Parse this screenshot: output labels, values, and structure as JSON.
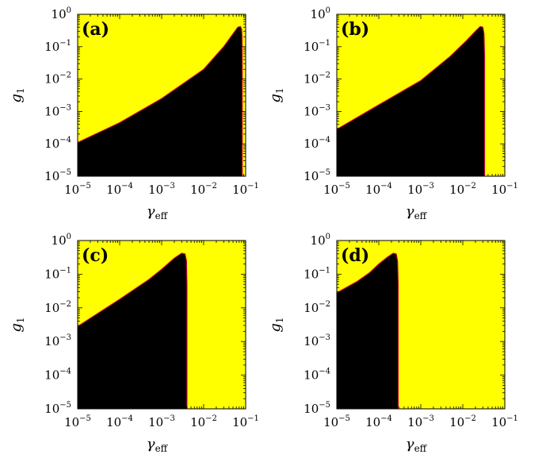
{
  "chart_data": [
    {
      "type": "area",
      "panel_label": "(a)",
      "xlabel": "γ",
      "xlabel_sub": "eff",
      "ylabel": "g",
      "ylabel_sub": "1",
      "x_scale": "log",
      "y_scale": "log",
      "xlim": [
        1e-05,
        0.1
      ],
      "ylim": [
        1e-05,
        1
      ],
      "x_ticks": [
        "10",
        "10",
        "10",
        "10",
        "10"
      ],
      "x_tick_exp": [
        "−5",
        "−4",
        "−3",
        "−2",
        "−1"
      ],
      "y_ticks": [
        "10",
        "10",
        "10",
        "10",
        "10",
        "10"
      ],
      "y_tick_exp": [
        "−5",
        "−4",
        "−3",
        "−2",
        "−1",
        "0"
      ],
      "background_color": "#ffff00",
      "region_color": "#000000",
      "boundary_color": "#c0003c",
      "region_boundary": {
        "x": [
          1e-05,
          0.0001,
          0.001,
          0.01,
          0.03,
          0.05,
          0.065,
          0.075,
          0.08,
          0.082,
          0.083,
          0.083
        ],
        "y": [
          0.00011,
          0.00045,
          0.0025,
          0.02,
          0.1,
          0.25,
          0.4,
          0.42,
          0.35,
          0.2,
          0.05,
          1e-05
        ]
      }
    },
    {
      "type": "area",
      "panel_label": "(b)",
      "xlabel": "γ",
      "xlabel_sub": "eff",
      "ylabel": "g",
      "ylabel_sub": "1",
      "x_scale": "log",
      "y_scale": "log",
      "xlim": [
        1e-05,
        0.1
      ],
      "ylim": [
        1e-05,
        1
      ],
      "x_ticks": [
        "10",
        "10",
        "10",
        "10",
        "10"
      ],
      "x_tick_exp": [
        "−5",
        "−4",
        "−3",
        "−2",
        "−1"
      ],
      "y_ticks": [
        "10",
        "10",
        "10",
        "10",
        "10",
        "10"
      ],
      "y_tick_exp": [
        "−5",
        "−4",
        "−3",
        "−2",
        "−1",
        "0"
      ],
      "background_color": "#ffff00",
      "region_color": "#000000",
      "boundary_color": "#c0003c",
      "region_boundary": {
        "x": [
          1e-05,
          0.0001,
          0.001,
          0.005,
          0.012,
          0.02,
          0.026,
          0.03,
          0.032,
          0.033,
          0.033
        ],
        "y": [
          0.00028,
          0.0016,
          0.009,
          0.05,
          0.15,
          0.3,
          0.42,
          0.4,
          0.25,
          0.05,
          1e-05
        ]
      }
    },
    {
      "type": "area",
      "panel_label": "(c)",
      "xlabel": "γ",
      "xlabel_sub": "eff",
      "ylabel": "g",
      "ylabel_sub": "1",
      "x_scale": "log",
      "y_scale": "log",
      "xlim": [
        1e-05,
        0.1
      ],
      "ylim": [
        1e-05,
        1
      ],
      "x_ticks": [
        "10",
        "10",
        "10",
        "10",
        "10"
      ],
      "x_tick_exp": [
        "−5",
        "−4",
        "−3",
        "−2",
        "−1"
      ],
      "y_ticks": [
        "10",
        "10",
        "10",
        "10",
        "10",
        "10"
      ],
      "y_tick_exp": [
        "−5",
        "−4",
        "−3",
        "−2",
        "−1",
        "0"
      ],
      "background_color": "#ffff00",
      "region_color": "#000000",
      "boundary_color": "#c0003c",
      "region_boundary": {
        "x": [
          1e-05,
          0.0001,
          0.0005,
          0.001,
          0.002,
          0.003,
          0.0036,
          0.0039,
          0.004,
          0.004
        ],
        "y": [
          0.0028,
          0.018,
          0.07,
          0.14,
          0.3,
          0.42,
          0.4,
          0.25,
          0.05,
          1e-05
        ]
      }
    },
    {
      "type": "area",
      "panel_label": "(d)",
      "xlabel": "γ",
      "xlabel_sub": "eff",
      "ylabel": "g",
      "ylabel_sub": "1",
      "x_scale": "log",
      "y_scale": "log",
      "xlim": [
        1e-05,
        0.1
      ],
      "ylim": [
        1e-05,
        1
      ],
      "x_ticks": [
        "10",
        "10",
        "10",
        "10",
        "10"
      ],
      "x_tick_exp": [
        "−5",
        "−4",
        "−3",
        "−2",
        "−1"
      ],
      "y_ticks": [
        "10",
        "10",
        "10",
        "10",
        "10",
        "10"
      ],
      "y_tick_exp": [
        "−5",
        "−4",
        "−3",
        "−2",
        "−1",
        "0"
      ],
      "background_color": "#ffff00",
      "region_color": "#000000",
      "boundary_color": "#c0003c",
      "region_boundary": {
        "x": [
          1e-05,
          3e-05,
          6e-05,
          0.0001,
          0.00016,
          0.00022,
          0.00026,
          0.00028,
          0.00029,
          0.00029
        ],
        "y": [
          0.028,
          0.06,
          0.11,
          0.2,
          0.32,
          0.42,
          0.4,
          0.25,
          0.05,
          1e-05
        ]
      }
    }
  ]
}
